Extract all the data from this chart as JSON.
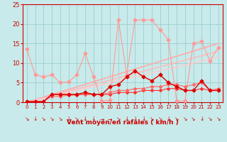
{
  "xlabel": "Vent moyen/en rafales ( km/h )",
  "xlim": [
    -0.5,
    23.5
  ],
  "ylim": [
    0,
    25
  ],
  "yticks": [
    0,
    5,
    10,
    15,
    20,
    25
  ],
  "xticks": [
    0,
    1,
    2,
    3,
    4,
    5,
    6,
    7,
    8,
    9,
    10,
    11,
    12,
    13,
    14,
    15,
    16,
    17,
    18,
    19,
    20,
    21,
    22,
    23
  ],
  "bg_color": "#c8eaea",
  "grid_color": "#9ecece",
  "series": [
    {
      "x": [
        0,
        1,
        2,
        3,
        4,
        5,
        6,
        7,
        8,
        9,
        10,
        11,
        12,
        13,
        14,
        15,
        16,
        17,
        18,
        19,
        20,
        21,
        22,
        23
      ],
      "y": [
        13.5,
        7.0,
        6.5,
        7.0,
        5.0,
        5.2,
        7.0,
        12.5,
        6.5,
        0.3,
        0.5,
        21.0,
        7.0,
        21.0,
        21.0,
        21.0,
        18.5,
        16.0,
        0.3,
        0.3,
        15.0,
        15.5,
        10.5,
        14.0
      ],
      "color": "#ff9999",
      "marker": "D",
      "markersize": 2.5,
      "linewidth": 0.8,
      "zorder": 3
    },
    {
      "x": [
        0,
        1,
        2,
        3,
        4,
        5,
        6,
        7,
        8,
        9,
        10,
        11,
        12,
        13,
        14,
        15,
        16,
        17,
        18,
        19,
        20,
        21,
        22,
        23
      ],
      "y": [
        0.2,
        0.2,
        0.2,
        2.0,
        2.0,
        2.0,
        2.0,
        2.5,
        2.0,
        2.0,
        4.0,
        4.5,
        6.5,
        8.0,
        6.5,
        5.5,
        7.0,
        5.0,
        4.0,
        3.0,
        3.0,
        5.5,
        3.0,
        3.0
      ],
      "color": "#dd0000",
      "marker": "D",
      "markersize": 2.5,
      "linewidth": 1.0,
      "zorder": 5
    },
    {
      "x": [
        0,
        1,
        2,
        3,
        4,
        5,
        6,
        7,
        8,
        9,
        10,
        11,
        12,
        13,
        14,
        15,
        16,
        17,
        18,
        19,
        20,
        21,
        22,
        23
      ],
      "y": [
        0.2,
        0.2,
        0.2,
        2.0,
        2.0,
        2.0,
        2.0,
        2.0,
        2.0,
        2.0,
        2.0,
        2.5,
        2.5,
        2.5,
        3.0,
        3.0,
        3.0,
        3.5,
        3.5,
        3.0,
        3.0,
        3.5,
        3.0,
        3.0
      ],
      "color": "#ff3333",
      "marker": "D",
      "markersize": 2.0,
      "linewidth": 0.8,
      "zorder": 4
    },
    {
      "x": [
        0,
        1,
        2,
        3,
        4,
        5,
        6,
        7,
        8,
        9,
        10,
        11,
        12,
        13,
        14,
        15,
        16,
        17,
        18,
        19,
        20,
        21,
        22,
        23
      ],
      "y": [
        0.2,
        0.2,
        0.2,
        1.5,
        1.5,
        1.8,
        1.8,
        2.0,
        2.0,
        2.0,
        2.5,
        3.0,
        3.0,
        3.5,
        3.5,
        4.0,
        4.0,
        4.5,
        4.5,
        4.0,
        4.5,
        5.0,
        3.0,
        3.5
      ],
      "color": "#ff6666",
      "marker": "D",
      "markersize": 2.0,
      "linewidth": 0.8,
      "zorder": 4
    },
    {
      "x": [
        0,
        23
      ],
      "y": [
        0.0,
        15.0
      ],
      "color": "#ffaaaa",
      "marker": "None",
      "markersize": 0,
      "linewidth": 1.2,
      "zorder": 2
    },
    {
      "x": [
        0,
        23
      ],
      "y": [
        0.0,
        13.0
      ],
      "color": "#ffbbbb",
      "marker": "None",
      "markersize": 0,
      "linewidth": 1.2,
      "zorder": 2
    },
    {
      "x": [
        0,
        23
      ],
      "y": [
        0.0,
        11.5
      ],
      "color": "#ffcccc",
      "marker": "None",
      "markersize": 0,
      "linewidth": 1.2,
      "zorder": 2
    }
  ],
  "wind_arrows_x": [
    0,
    1,
    2,
    3,
    4,
    5,
    6,
    7,
    8,
    9,
    10,
    11,
    12,
    13,
    14,
    15,
    16,
    17,
    18,
    19,
    20,
    21,
    22,
    23
  ],
  "wind_arrows": [
    "↘",
    "↓",
    "↘",
    "↘",
    "↘",
    "↓",
    "↘",
    "↓",
    "↓",
    "→",
    "→",
    "↘",
    "↓",
    "↓",
    "↓",
    "↘",
    "↘",
    "↓",
    "↘",
    "↘",
    "↘",
    "↓",
    "↘",
    "↘"
  ],
  "arrow_color": "#cc0000"
}
